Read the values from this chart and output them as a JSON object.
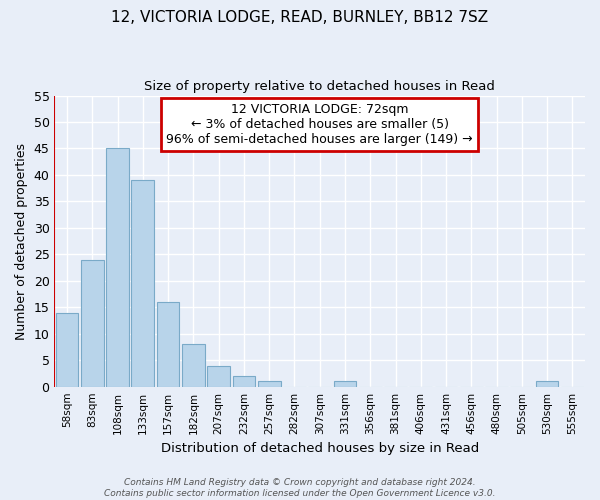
{
  "title": "12, VICTORIA LODGE, READ, BURNLEY, BB12 7SZ",
  "subtitle": "Size of property relative to detached houses in Read",
  "xlabel": "Distribution of detached houses by size in Read",
  "ylabel": "Number of detached properties",
  "bin_labels": [
    "58sqm",
    "83sqm",
    "108sqm",
    "133sqm",
    "157sqm",
    "182sqm",
    "207sqm",
    "232sqm",
    "257sqm",
    "282sqm",
    "307sqm",
    "331sqm",
    "356sqm",
    "381sqm",
    "406sqm",
    "431sqm",
    "456sqm",
    "480sqm",
    "505sqm",
    "530sqm",
    "555sqm"
  ],
  "bar_heights": [
    14,
    24,
    45,
    39,
    16,
    8,
    4,
    2,
    1,
    0,
    0,
    1,
    0,
    0,
    0,
    0,
    0,
    0,
    0,
    1,
    0
  ],
  "bar_color": "#b8d4ea",
  "bar_edge_color": "#7aaac8",
  "ylim": [
    0,
    55
  ],
  "yticks": [
    0,
    5,
    10,
    15,
    20,
    25,
    30,
    35,
    40,
    45,
    50,
    55
  ],
  "annotation_line1": "12 VICTORIA LODGE: 72sqm",
  "annotation_line2": "← 3% of detached houses are smaller (5)",
  "annotation_line3": "96% of semi-detached houses are larger (149) →",
  "annotation_box_color": "#ffffff",
  "annotation_box_edge_color": "#cc0000",
  "property_line_color": "#cc0000",
  "footer_line1": "Contains HM Land Registry data © Crown copyright and database right 2024.",
  "footer_line2": "Contains public sector information licensed under the Open Government Licence v3.0.",
  "background_color": "#e8eef8",
  "grid_color": "#ffffff",
  "title_fontsize": 11,
  "subtitle_fontsize": 9.5
}
